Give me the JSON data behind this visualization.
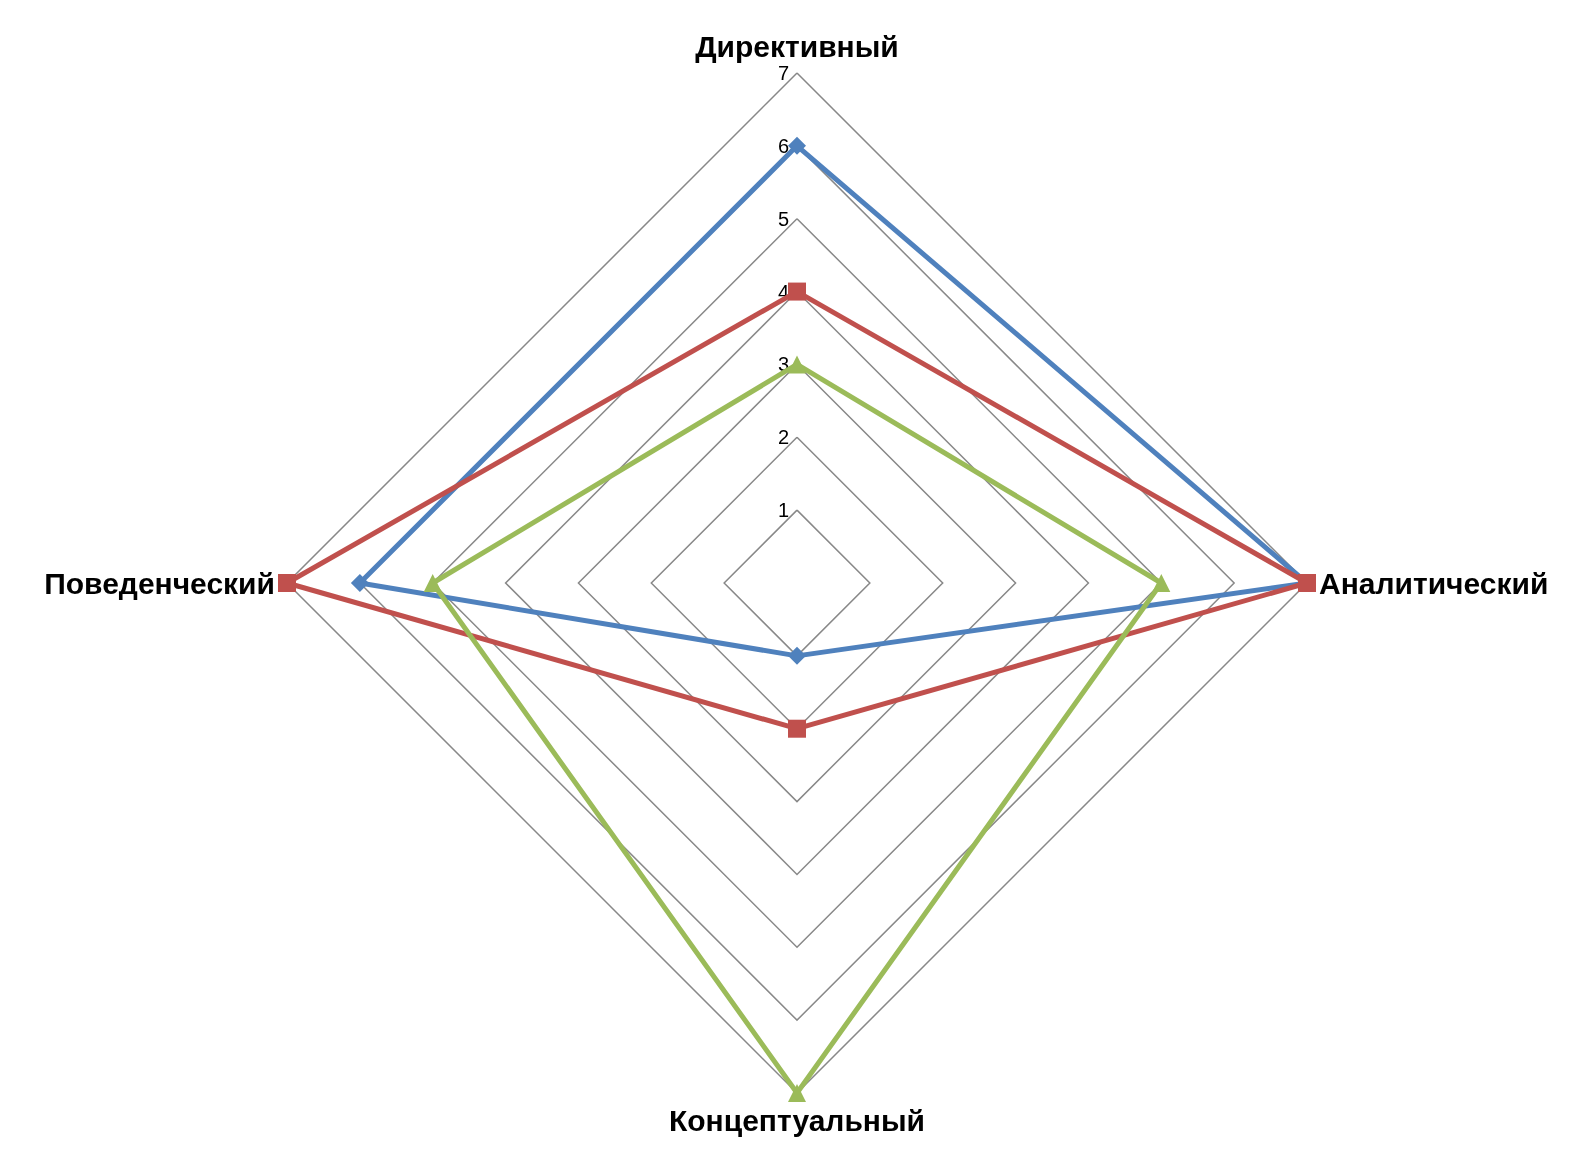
{
  "chart_data": {
    "type": "radar",
    "categories": [
      "Директивный",
      "Аналитический",
      "Концептуальный",
      "Поведенческий"
    ],
    "ylim": [
      0,
      7
    ],
    "yticks": [
      1,
      2,
      3,
      4,
      5,
      6,
      7
    ],
    "grid": true,
    "series": [
      {
        "color": "#4f81bd",
        "marker": "diamond",
        "values": [
          6,
          7,
          1,
          6
        ]
      },
      {
        "color": "#c0504d",
        "marker": "square",
        "values": [
          4,
          7,
          2,
          7
        ]
      },
      {
        "color": "#9bbb59",
        "marker": "triangle",
        "values": [
          3,
          5,
          7,
          5
        ]
      }
    ]
  }
}
